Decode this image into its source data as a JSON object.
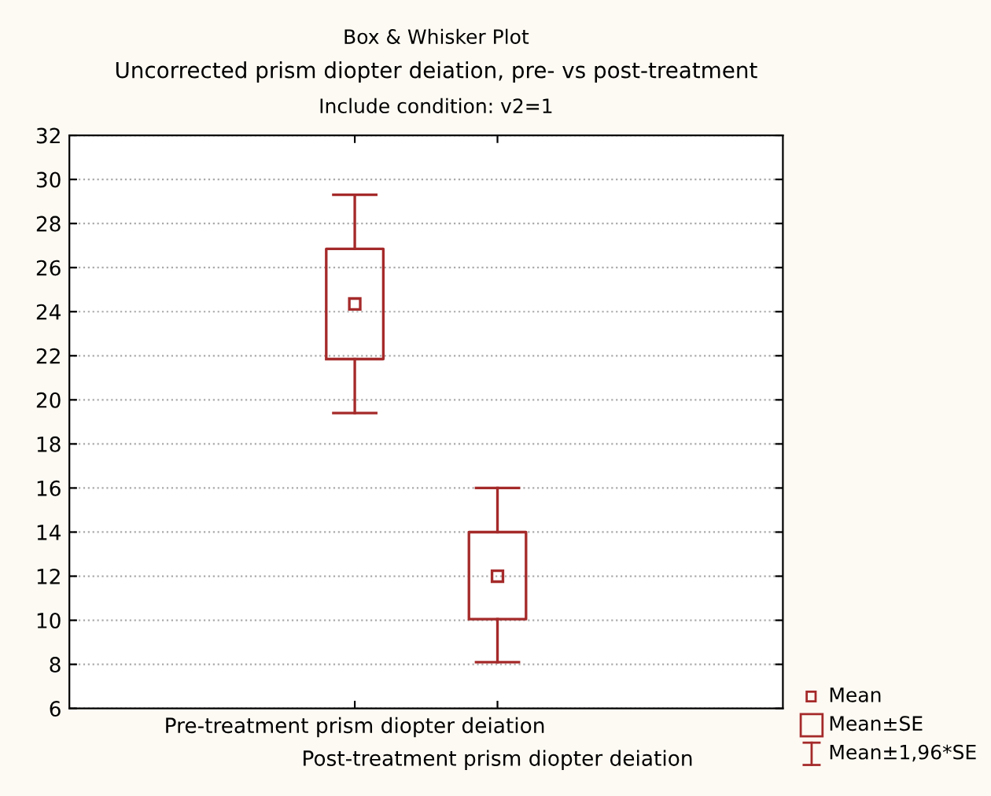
{
  "chart_data": {
    "type": "box",
    "title": "Box & Whisker Plot",
    "subtitle": "Uncorrected prism diopter deiation, pre- vs post-treatment",
    "annotations": [
      "Include condition: v2=1",
      "Mean",
      "Mean±SE",
      "Mean±1,96*SE"
    ],
    "categories": [
      "Pre-treatment prism diopter deiation",
      "Post-treatment prism diopter deiation"
    ],
    "series": [
      {
        "color": "#a52a2a",
        "boxes": [
          {
            "low": 19.4,
            "q1": 21.85,
            "median": 24.35,
            "q3": 26.85,
            "high": 29.3
          },
          {
            "low": 8.1,
            "q1": 10.05,
            "median": 12.0,
            "q3": 14.0,
            "high": 16.0
          }
        ]
      }
    ],
    "ylim": [
      6,
      32
    ],
    "yticks": [
      6,
      8,
      10,
      12,
      14,
      16,
      18,
      20,
      22,
      24,
      26,
      28,
      30,
      32
    ],
    "grid": "y",
    "marker": "square"
  }
}
